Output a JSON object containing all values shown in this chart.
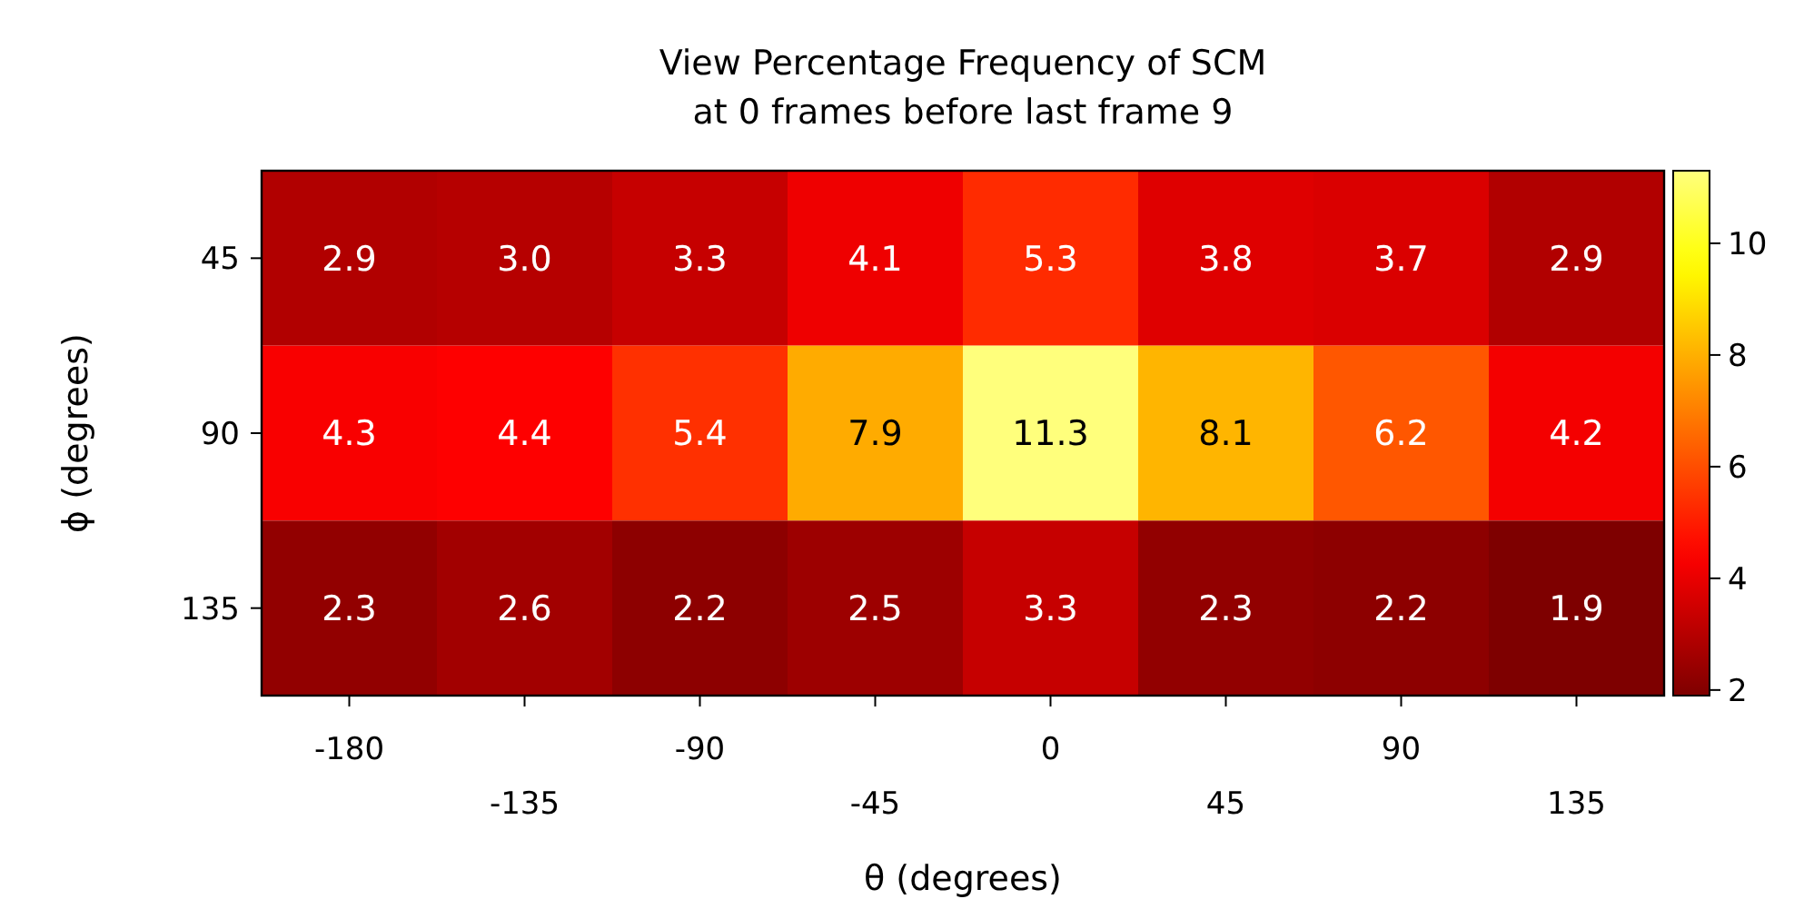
{
  "chart_data": {
    "type": "heatmap",
    "title": "View Percentage Frequency of SCM\nat 0 frames before last frame 9",
    "xlabel": "θ (degrees)",
    "ylabel": "ϕ (degrees)",
    "categories": [
      "-180",
      "-135",
      "-90",
      "-45",
      "0",
      "45",
      "90",
      "135"
    ],
    "y_categories": [
      "45",
      "90",
      "135"
    ],
    "cells": [
      [
        2.9,
        3.0,
        3.3,
        4.1,
        5.3,
        3.8,
        3.7,
        2.9
      ],
      [
        4.3,
        4.4,
        5.4,
        7.9,
        11.3,
        8.1,
        6.2,
        4.2
      ],
      [
        2.3,
        2.6,
        2.2,
        2.5,
        3.3,
        2.3,
        2.2,
        1.9
      ]
    ],
    "cell_labels": [
      [
        "2.9",
        "3.0",
        "3.3",
        "4.1",
        "5.3",
        "3.8",
        "3.7",
        "2.9"
      ],
      [
        "4.3",
        "4.4",
        "5.4",
        "7.9",
        "11.3",
        "8.1",
        "6.2",
        "4.2"
      ],
      [
        "2.3",
        "2.6",
        "2.2",
        "2.5",
        "3.3",
        "2.3",
        "2.2",
        "1.9"
      ]
    ],
    "clim": [
      1.9,
      11.3
    ],
    "cticks": [
      2,
      4,
      6,
      8,
      10
    ],
    "data_labels": true
  }
}
